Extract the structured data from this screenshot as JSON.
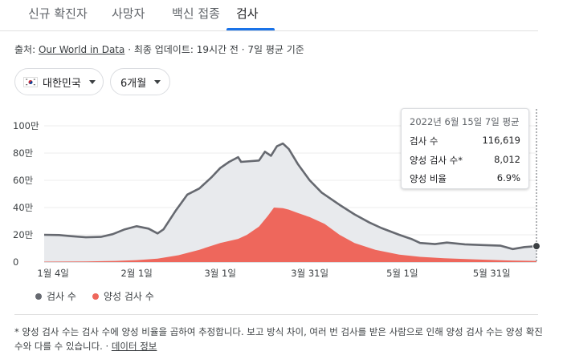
{
  "tabs": [
    {
      "label": "신규 확진자"
    },
    {
      "label": "사망자"
    },
    {
      "label": "백신 접종"
    },
    {
      "label": "검사"
    }
  ],
  "source": {
    "prefix": "출처: ",
    "link": "Our World in Data",
    "suffix": " · 최종 업데이트: 19시간 전 · 7일 평균 기준"
  },
  "filters": {
    "country": "대한민국",
    "period": "6개월"
  },
  "tooltip": {
    "date": "2022년 6월 15일 7일 평균",
    "rows": [
      {
        "label": "검사 수",
        "value": "116,619"
      },
      {
        "label": "양성 검사 수*",
        "value": "8,012"
      },
      {
        "label": "양성 비율",
        "value": "6.9%"
      }
    ]
  },
  "legend": [
    {
      "label": "검사 수",
      "color": "#666970"
    },
    {
      "label": "양성 검사 수",
      "color": "#ee675c"
    }
  ],
  "footnote": {
    "text": "* 양성 검사 수는 검사 수에 양성 비율을 곱하여 추정합니다. 보고 방식 차이, 여러 번 검사를 받은 사람으로 인해 양성 검사 수는 양성 확진 수와 다를 수 있습니다.",
    "link": "데이터 정보"
  },
  "colors": {
    "tests_line": "#666970",
    "tests_area": "#e8eaed",
    "positive_area": "#ee675c",
    "active_tab": "#1a73e8"
  },
  "chart_data": {
    "type": "area",
    "ylim": [
      0,
      1000000
    ],
    "y_ticks": [
      {
        "value": 0,
        "label": "0"
      },
      {
        "value": 200000,
        "label": "20만"
      },
      {
        "value": 400000,
        "label": "40만"
      },
      {
        "value": 600000,
        "label": "60만"
      },
      {
        "value": 800000,
        "label": "80만"
      },
      {
        "value": 1000000,
        "label": "100만"
      }
    ],
    "x_range": [
      "2022-01-01",
      "2022-06-15"
    ],
    "x_ticks": [
      {
        "date": "2022-01-04",
        "label": "1월 4일"
      },
      {
        "date": "2022-02-01",
        "label": "2월 1일"
      },
      {
        "date": "2022-03-01",
        "label": "3월 1일"
      },
      {
        "date": "2022-03-31",
        "label": "3월 31일"
      },
      {
        "date": "2022-05-01",
        "label": "5월 1일"
      },
      {
        "date": "2022-05-31",
        "label": "5월 31일"
      }
    ],
    "series": [
      {
        "name": "검사 수",
        "points": [
          [
            "2022-01-01",
            200000
          ],
          [
            "2022-01-06",
            198000
          ],
          [
            "2022-01-10",
            190000
          ],
          [
            "2022-01-15",
            182000
          ],
          [
            "2022-01-20",
            185000
          ],
          [
            "2022-01-24",
            205000
          ],
          [
            "2022-01-28",
            240000
          ],
          [
            "2022-02-01",
            263000
          ],
          [
            "2022-02-05",
            245000
          ],
          [
            "2022-02-08",
            210000
          ],
          [
            "2022-02-10",
            240000
          ],
          [
            "2022-02-14",
            375000
          ],
          [
            "2022-02-18",
            495000
          ],
          [
            "2022-02-22",
            540000
          ],
          [
            "2022-02-26",
            620000
          ],
          [
            "2022-03-01",
            690000
          ],
          [
            "2022-03-04",
            735000
          ],
          [
            "2022-03-07",
            770000
          ],
          [
            "2022-03-08",
            735000
          ],
          [
            "2022-03-14",
            745000
          ],
          [
            "2022-03-16",
            810000
          ],
          [
            "2022-03-18",
            780000
          ],
          [
            "2022-03-20",
            850000
          ],
          [
            "2022-03-22",
            870000
          ],
          [
            "2022-03-24",
            830000
          ],
          [
            "2022-03-27",
            720000
          ],
          [
            "2022-03-31",
            600000
          ],
          [
            "2022-04-04",
            510000
          ],
          [
            "2022-04-10",
            420000
          ],
          [
            "2022-04-15",
            350000
          ],
          [
            "2022-04-20",
            290000
          ],
          [
            "2022-04-24",
            250000
          ],
          [
            "2022-04-30",
            200000
          ],
          [
            "2022-05-04",
            170000
          ],
          [
            "2022-05-07",
            140000
          ],
          [
            "2022-05-12",
            132000
          ],
          [
            "2022-05-16",
            143000
          ],
          [
            "2022-05-22",
            130000
          ],
          [
            "2022-05-28",
            125000
          ],
          [
            "2022-06-03",
            120000
          ],
          [
            "2022-06-07",
            95000
          ],
          [
            "2022-06-11",
            110000
          ],
          [
            "2022-06-15",
            116619
          ]
        ]
      },
      {
        "name": "양성 검사 수",
        "points": [
          [
            "2022-01-01",
            3000
          ],
          [
            "2022-01-15",
            4000
          ],
          [
            "2022-01-25",
            8000
          ],
          [
            "2022-02-01",
            14000
          ],
          [
            "2022-02-08",
            25000
          ],
          [
            "2022-02-15",
            50000
          ],
          [
            "2022-02-22",
            90000
          ],
          [
            "2022-03-01",
            140000
          ],
          [
            "2022-03-07",
            170000
          ],
          [
            "2022-03-10",
            200000
          ],
          [
            "2022-03-14",
            260000
          ],
          [
            "2022-03-17",
            340000
          ],
          [
            "2022-03-19",
            400000
          ],
          [
            "2022-03-22",
            395000
          ],
          [
            "2022-03-24",
            385000
          ],
          [
            "2022-03-27",
            360000
          ],
          [
            "2022-03-31",
            330000
          ],
          [
            "2022-04-05",
            280000
          ],
          [
            "2022-04-10",
            200000
          ],
          [
            "2022-04-15",
            140000
          ],
          [
            "2022-04-22",
            90000
          ],
          [
            "2022-04-30",
            55000
          ],
          [
            "2022-05-07",
            38000
          ],
          [
            "2022-05-15",
            28000
          ],
          [
            "2022-05-25",
            20000
          ],
          [
            "2022-06-05",
            12000
          ],
          [
            "2022-06-15",
            8012
          ]
        ]
      }
    ],
    "hover_date": "2022-06-15",
    "grid": true
  }
}
